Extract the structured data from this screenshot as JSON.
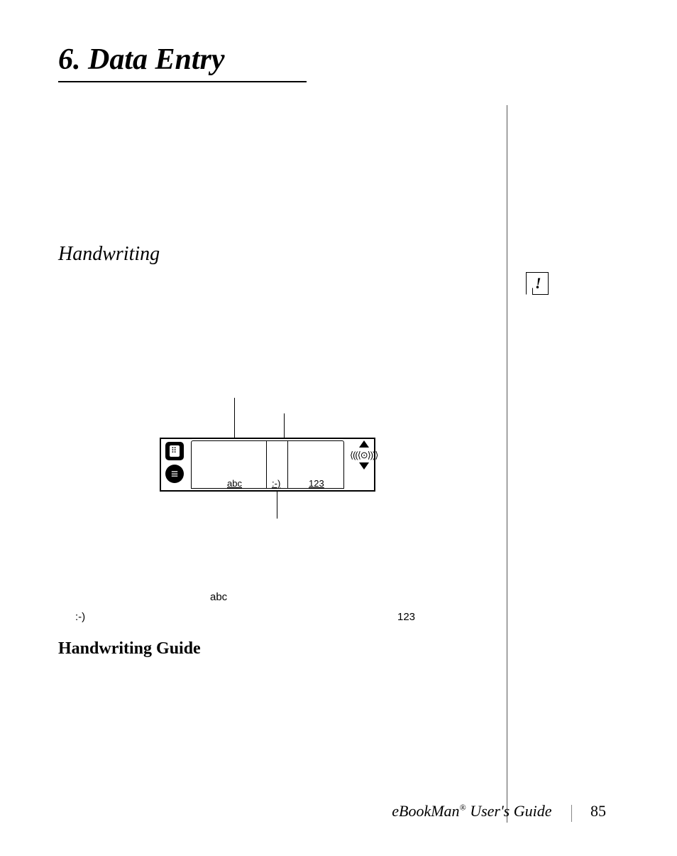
{
  "chapter": {
    "title": "6. Data Entry"
  },
  "section": {
    "title": "Handwriting"
  },
  "subsection": {
    "title": "Handwriting Guide"
  },
  "diagram": {
    "area_labels": {
      "abc": "abc",
      "smiley": ":-)",
      "num": "123"
    },
    "scroll_text": "⟨((⟨⊙⟩))⟩"
  },
  "below_labels": {
    "abc": "abc",
    "smiley": ":-)",
    "num": "123"
  },
  "footer": {
    "book_title_part1": "eBookMan",
    "book_title_reg": "®",
    "book_title_part2": " User's Guide",
    "page_number": "85"
  },
  "colors": {
    "text": "#000000",
    "background": "#ffffff",
    "divider": "#555555"
  }
}
